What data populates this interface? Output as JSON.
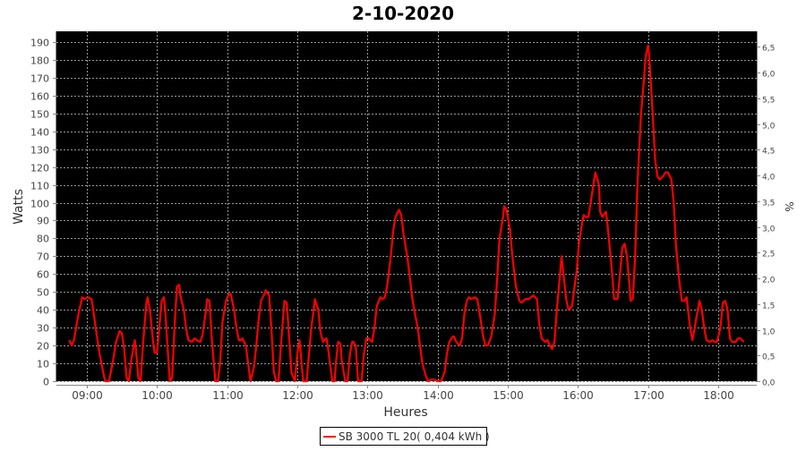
{
  "chart_data": {
    "type": "line",
    "title": "2-10-2020",
    "xlabel": "Heures",
    "ylabel": "Watts",
    "y2label": "%",
    "xlim": [
      "08:34",
      "18:33"
    ],
    "ylim": [
      0,
      196
    ],
    "y2lim": [
      0,
      6.8
    ],
    "grid": true,
    "legend_position": "bottom",
    "background": "#000000",
    "line_color": "#ff0000",
    "x_ticks": [
      "09:00",
      "10:00",
      "11:00",
      "12:00",
      "13:00",
      "14:00",
      "15:00",
      "16:00",
      "17:00",
      "18:00"
    ],
    "y_ticks": [
      0,
      10,
      20,
      30,
      40,
      50,
      60,
      70,
      80,
      90,
      100,
      110,
      120,
      130,
      140,
      150,
      160,
      170,
      180,
      190
    ],
    "y2_ticks": [
      "0,0",
      "0,5",
      "1,0",
      "1,5",
      "2,0",
      "2,5",
      "3,0",
      "3,5",
      "4,0",
      "4,5",
      "5,0",
      "5,5",
      "6,0",
      "6,5"
    ],
    "series": [
      {
        "name": "SB 3000 TL 20( 0,404 kWh )",
        "x": [
          "08:45",
          "08:47",
          "08:49",
          "08:53",
          "08:56",
          "08:58",
          "09:01",
          "09:04",
          "09:05",
          "09:08",
          "09:11",
          "09:15",
          "09:16",
          "09:19",
          "09:22",
          "09:25",
          "09:28",
          "09:30",
          "09:32",
          "09:34",
          "09:36",
          "09:38",
          "09:41",
          "09:42",
          "09:44",
          "09:46",
          "09:48",
          "09:51",
          "09:52",
          "09:54",
          "09:57",
          "09:58",
          "10:00",
          "10:02",
          "10:04",
          "10:06",
          "10:07",
          "10:10",
          "10:11",
          "10:13",
          "10:15",
          "10:17",
          "10:19",
          "10:20",
          "10:23",
          "10:25",
          "10:27",
          "10:30",
          "10:32",
          "10:34",
          "10:37",
          "10:39",
          "10:42",
          "10:43",
          "10:45",
          "10:47",
          "10:50",
          "10:52",
          "10:54",
          "10:56",
          "10:59",
          "11:01",
          "11:03",
          "11:06",
          "11:08",
          "11:10",
          "11:12",
          "11:13",
          "11:16",
          "11:18",
          "11:20",
          "11:23",
          "11:25",
          "11:27",
          "11:29",
          "11:32",
          "11:33",
          "11:36",
          "11:38",
          "11:40",
          "11:42",
          "11:44",
          "11:46",
          "11:49",
          "11:51",
          "11:53",
          "11:55",
          "11:58",
          "12:00",
          "12:02",
          "12:03",
          "12:05",
          "12:08",
          "12:10",
          "12:12",
          "12:14",
          "12:15",
          "12:18",
          "12:20",
          "12:22",
          "12:23",
          "12:25",
          "12:26",
          "12:28",
          "12:30",
          "12:32",
          "12:33",
          "12:35",
          "12:37",
          "12:38",
          "12:41",
          "12:43",
          "12:45",
          "12:47",
          "12:48",
          "12:50",
          "12:52",
          "12:55",
          "12:57",
          "12:59",
          "13:01",
          "13:04",
          "13:06",
          "13:08",
          "13:11",
          "13:13",
          "13:15",
          "13:17",
          "13:20",
          "13:22",
          "13:24",
          "13:27",
          "13:29",
          "13:31",
          "13:34",
          "13:36",
          "13:38",
          "13:40",
          "13:43",
          "13:45",
          "13:47",
          "13:50",
          "13:52",
          "13:55",
          "13:57",
          "14:00",
          "14:03",
          "14:06",
          "14:08",
          "14:10",
          "14:13",
          "14:14",
          "14:16",
          "14:19",
          "14:21",
          "14:23",
          "14:25",
          "14:27",
          "14:29",
          "14:32",
          "14:34",
          "14:36",
          "14:39",
          "14:41",
          "14:43",
          "14:46",
          "14:49",
          "14:51",
          "14:53",
          "14:56",
          "14:57",
          "14:59",
          "15:02",
          "15:04",
          "15:07",
          "15:10",
          "15:12",
          "15:15",
          "15:18",
          "15:20",
          "15:22",
          "15:25",
          "15:27",
          "15:29",
          "15:32",
          "15:34",
          "15:36",
          "15:38",
          "15:40",
          "15:42",
          "15:45",
          "15:46",
          "15:48",
          "15:50",
          "15:52",
          "15:55",
          "15:57",
          "15:59",
          "16:01",
          "16:04",
          "16:05",
          "16:07",
          "16:09",
          "16:11",
          "16:14",
          "16:15",
          "16:18",
          "16:19",
          "16:21",
          "16:24",
          "16:25",
          "16:28",
          "16:30",
          "16:31",
          "16:34",
          "16:36",
          "16:38",
          "16:40",
          "16:42",
          "16:44",
          "16:45",
          "16:47",
          "16:49",
          "16:51",
          "16:54",
          "16:56",
          "16:58",
          "17:00",
          "17:01",
          "17:04",
          "17:06",
          "17:08",
          "17:10",
          "17:13",
          "17:15",
          "17:17",
          "17:20",
          "17:22",
          "17:24",
          "17:27",
          "17:29",
          "17:31",
          "17:33",
          "17:36",
          "17:38",
          "17:40",
          "17:42",
          "17:44",
          "17:46",
          "17:48",
          "17:50",
          "17:53",
          "17:55",
          "17:57",
          "17:59",
          "18:02",
          "18:04",
          "18:06",
          "18:08",
          "18:10",
          "18:12",
          "18:15",
          "18:17",
          "18:19",
          "18:22"
        ],
        "values": [
          23,
          20,
          23,
          38,
          47,
          46,
          47,
          46,
          42,
          28,
          15,
          2,
          0,
          0,
          10,
          22,
          28,
          27,
          18,
          2,
          0,
          12,
          23,
          18,
          2,
          0,
          20,
          44,
          47,
          40,
          20,
          16,
          16,
          30,
          45,
          47,
          40,
          10,
          0,
          2,
          30,
          53,
          54,
          48,
          40,
          29,
          23,
          22,
          24,
          23,
          22,
          26,
          40,
          46,
          45,
          23,
          0,
          0,
          10,
          33,
          45,
          48,
          49,
          40,
          30,
          23,
          23,
          24,
          20,
          10,
          0,
          8,
          20,
          35,
          45,
          49,
          51,
          48,
          28,
          5,
          0,
          0,
          20,
          45,
          44,
          25,
          5,
          0,
          15,
          23,
          15,
          0,
          0,
          15,
          30,
          40,
          46,
          40,
          27,
          22,
          23,
          24,
          20,
          10,
          0,
          0,
          10,
          22,
          21,
          12,
          0,
          0,
          15,
          22,
          22,
          20,
          0,
          0,
          15,
          24,
          24,
          22,
          30,
          42,
          47,
          46,
          47,
          54,
          70,
          84,
          92,
          96,
          93,
          82,
          70,
          60,
          48,
          40,
          30,
          20,
          10,
          3,
          0,
          1,
          1,
          0,
          0,
          5,
          15,
          22,
          25,
          25,
          22,
          20,
          24,
          38,
          45,
          47,
          46,
          47,
          46,
          38,
          25,
          20,
          20,
          25,
          38,
          58,
          80,
          92,
          98,
          96,
          85,
          70,
          53,
          45,
          44,
          46,
          46,
          47,
          48,
          46,
          32,
          24,
          22,
          23,
          20,
          18,
          22,
          40,
          62,
          70,
          58,
          46,
          40,
          42,
          52,
          62,
          78,
          90,
          93,
          92,
          92,
          100,
          113,
          117,
          110,
          95,
          92,
          95,
          90,
          70,
          55,
          46,
          46,
          60,
          75,
          77,
          70,
          55,
          45,
          46,
          70,
          110,
          150,
          165,
          182,
          188,
          182,
          150,
          125,
          115,
          113,
          115,
          117,
          117,
          113,
          100,
          75,
          55,
          45,
          45,
          47,
          30,
          23,
          30,
          38,
          45,
          40,
          30,
          23,
          22,
          23,
          22,
          22,
          30,
          44,
          45,
          40,
          24,
          22,
          22,
          24,
          24,
          22
        ]
      }
    ]
  }
}
